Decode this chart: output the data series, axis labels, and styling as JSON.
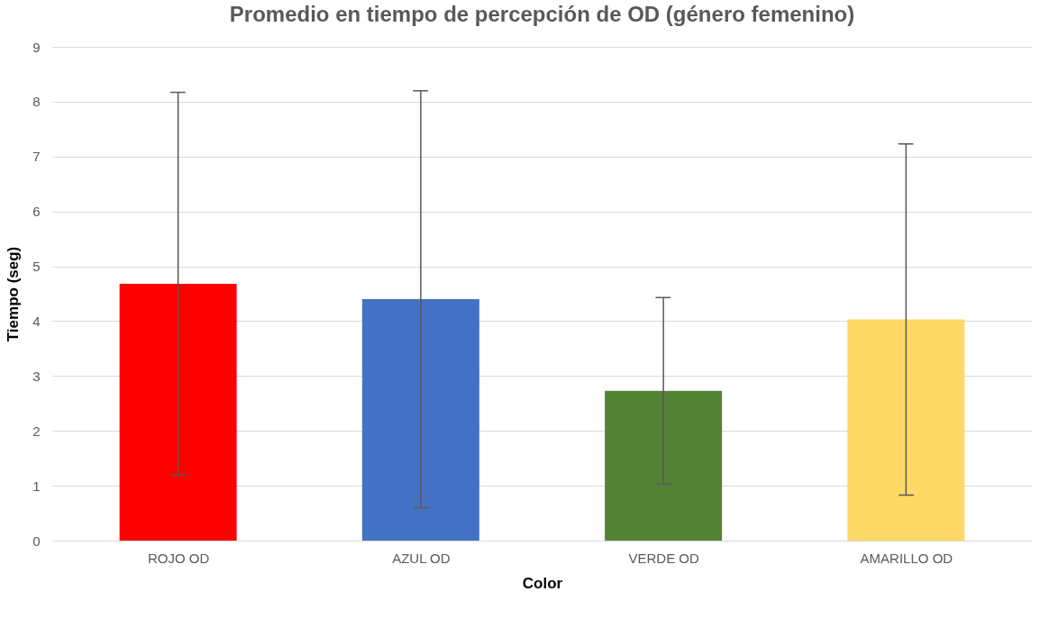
{
  "chart_data": {
    "type": "bar",
    "title": "Promedio en tiempo de percepción de OD (género femenino)",
    "xlabel": "Color",
    "ylabel": "Tiempo (seg)",
    "categories": [
      "ROJO OD",
      "AZUL OD",
      "VERDE OD",
      "AMARILLO OD"
    ],
    "values": [
      4.68,
      4.4,
      2.73,
      4.03
    ],
    "colors": [
      "#ff0000",
      "#4472c4",
      "#548235",
      "#ffd966"
    ],
    "errors": [
      3.49,
      3.8,
      1.7,
      3.2
    ],
    "ylim": [
      0,
      9
    ],
    "yticks": [
      0,
      1,
      2,
      3,
      4,
      5,
      6,
      7,
      8,
      9
    ],
    "grid": "y",
    "legend": false
  }
}
